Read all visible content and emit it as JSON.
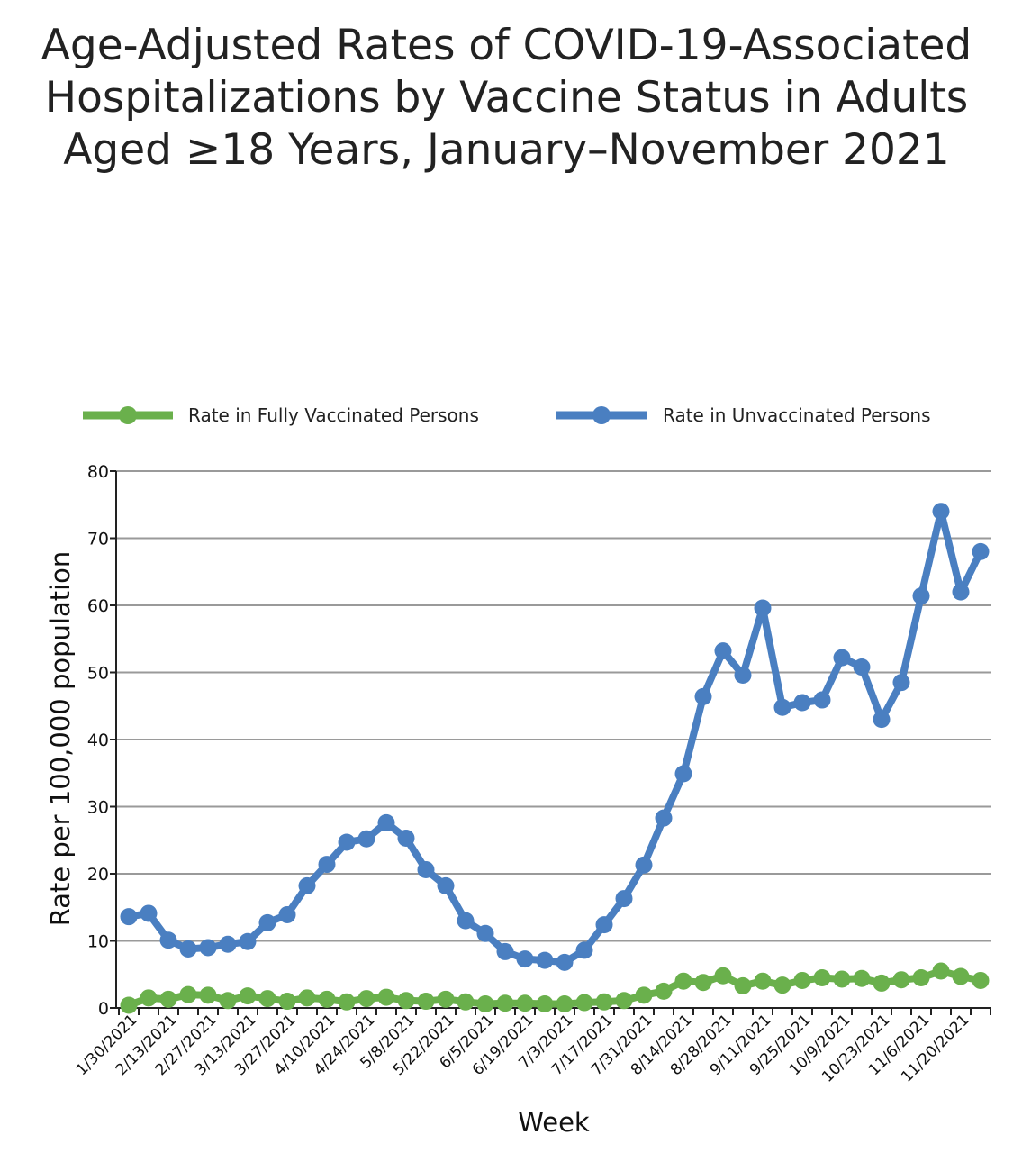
{
  "chart_data": {
    "type": "line",
    "title": "Age-Adjusted Rates of COVID-19-Associated Hospitalizations by Vaccine Status in Adults Aged ≥18 Years, January–November 2021",
    "xlabel": "Week",
    "ylabel": "Rate per 100,000 population",
    "ylim": [
      0,
      80
    ],
    "yticks": [
      0,
      10,
      20,
      30,
      40,
      50,
      60,
      70,
      80
    ],
    "grid": "horizontal",
    "legend_position": "top",
    "x": [
      "1/30/2021",
      "2/6/2021",
      "2/13/2021",
      "2/20/2021",
      "2/27/2021",
      "3/6/2021",
      "3/13/2021",
      "3/20/2021",
      "3/27/2021",
      "4/3/2021",
      "4/10/2021",
      "4/17/2021",
      "4/24/2021",
      "5/1/2021",
      "5/8/2021",
      "5/15/2021",
      "5/22/2021",
      "5/29/2021",
      "6/5/2021",
      "6/12/2021",
      "6/19/2021",
      "6/26/2021",
      "7/3/2021",
      "7/10/2021",
      "7/17/2021",
      "7/24/2021",
      "7/31/2021",
      "8/7/2021",
      "8/14/2021",
      "8/21/2021",
      "8/28/2021",
      "9/4/2021",
      "9/11/2021",
      "9/18/2021",
      "9/25/2021",
      "10/2/2021",
      "10/9/2021",
      "10/16/2021",
      "10/23/2021",
      "10/30/2021",
      "11/6/2021",
      "11/13/2021",
      "11/20/2021",
      "11/27/2021"
    ],
    "x_tick_labels": [
      "1/30/2021",
      "2/13/2021",
      "2/27/2021",
      "3/13/2021",
      "3/27/2021",
      "4/10/2021",
      "4/24/2021",
      "5/8/2021",
      "5/22/2021",
      "6/5/2021",
      "6/19/2021",
      "7/3/2021",
      "7/17/2021",
      "7/31/2021",
      "8/14/2021",
      "8/28/2021",
      "9/11/2021",
      "9/25/2021",
      "10/9/2021",
      "10/23/2021",
      "11/6/2021",
      "11/20/2021"
    ],
    "series": [
      {
        "name": "Rate in Fully Vaccinated Persons",
        "color": "#6ab04c",
        "values": [
          0.4,
          1.5,
          1.3,
          2.0,
          1.9,
          1.1,
          1.8,
          1.4,
          1.0,
          1.5,
          1.3,
          0.9,
          1.4,
          1.6,
          1.1,
          1.0,
          1.3,
          0.9,
          0.6,
          0.7,
          0.7,
          0.6,
          0.6,
          0.8,
          0.9,
          1.1,
          1.9,
          2.5,
          4.0,
          3.8,
          4.8,
          3.3,
          4.0,
          3.4,
          4.1,
          4.5,
          4.3,
          4.4,
          3.7,
          4.2,
          4.5,
          5.5,
          4.7,
          4.1
        ]
      },
      {
        "name": "Rate in Unvaccinated Persons",
        "color": "#4a7fc1",
        "values": [
          13.6,
          14.1,
          10.1,
          8.8,
          9.0,
          9.5,
          9.9,
          12.7,
          13.9,
          18.2,
          21.4,
          24.7,
          25.2,
          27.6,
          25.3,
          20.6,
          18.2,
          13.0,
          11.1,
          8.4,
          7.3,
          7.1,
          6.8,
          8.6,
          12.4,
          16.3,
          21.3,
          28.3,
          34.9,
          46.4,
          53.2,
          49.6,
          59.6,
          44.8,
          45.5,
          45.9,
          52.2,
          50.8,
          43.0,
          48.5,
          61.4,
          74.0,
          62.0,
          68.0
        ]
      }
    ]
  }
}
